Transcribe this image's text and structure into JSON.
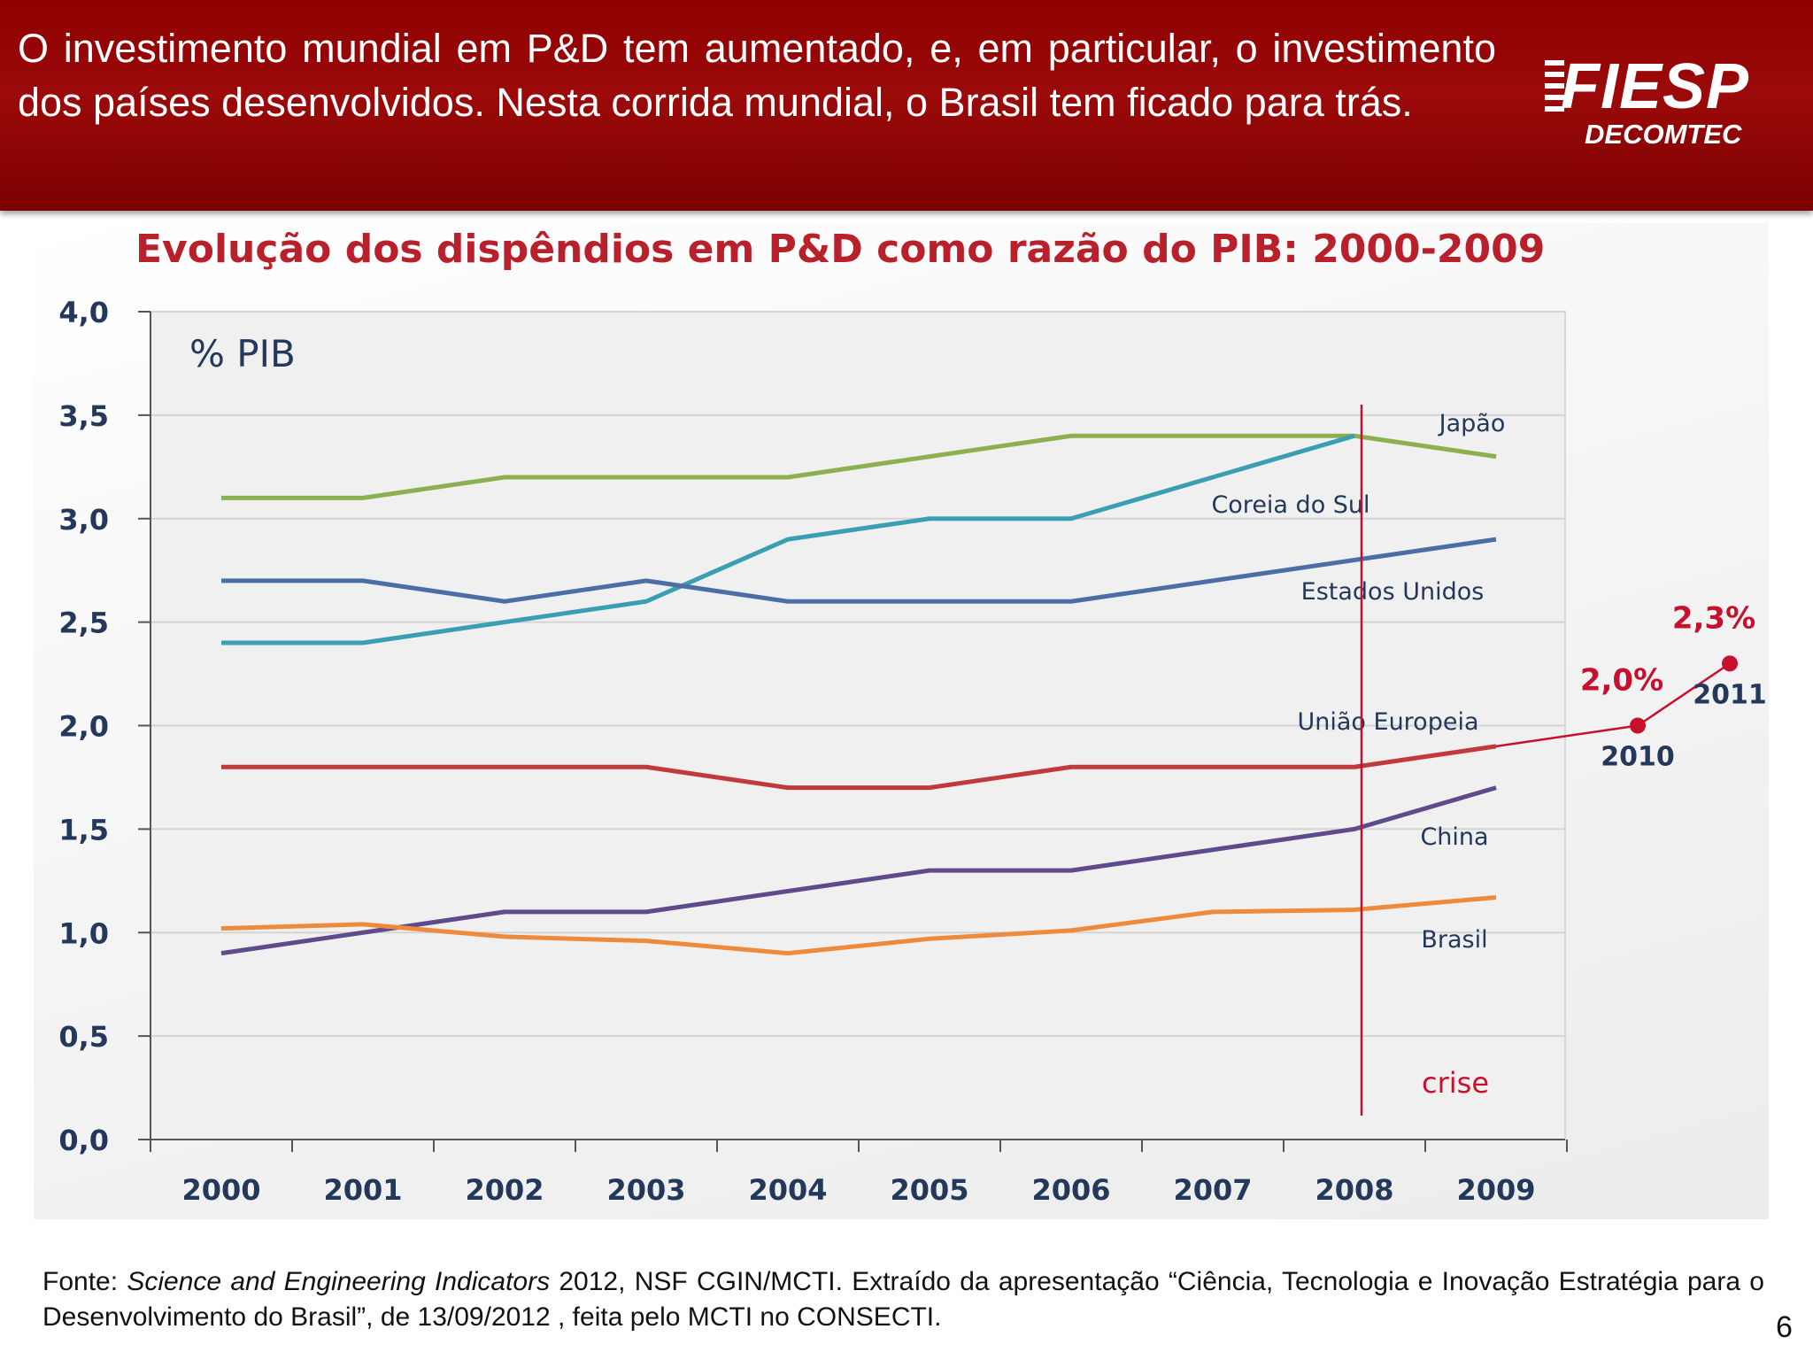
{
  "header": {
    "headline": "O investimento mundial em P&D tem aumentado, e, em particular, o investimento dos países desenvolvidos. Nesta corrida mundial, o Brasil tem ficado para trás.",
    "logo": "FIESP",
    "logo_sub": "DECOMTEC"
  },
  "chart_data": {
    "type": "line",
    "title": "Evolução dos dispêndios em P&D como razão do PIB: 2000-2009",
    "ylabel": "% PIB",
    "xlabel": "",
    "categories": [
      "2000",
      "2001",
      "2002",
      "2003",
      "2004",
      "2005",
      "2006",
      "2007",
      "2008",
      "2009"
    ],
    "yticks": [
      "0,0",
      "0,5",
      "1,0",
      "1,5",
      "2,0",
      "2,5",
      "3,0",
      "3,5",
      "4,0"
    ],
    "ylim": [
      0,
      4
    ],
    "grid": true,
    "series": [
      {
        "name": "Japão",
        "color": "#8cb050",
        "values": [
          3.1,
          3.1,
          3.2,
          3.2,
          3.2,
          3.3,
          3.4,
          3.4,
          3.4,
          3.3
        ]
      },
      {
        "name": "Coreia do Sul",
        "color": "#3a9fb2",
        "values": [
          2.4,
          2.4,
          2.5,
          2.6,
          2.9,
          3.0,
          3.0,
          3.2,
          3.4,
          null
        ]
      },
      {
        "name": "Estados Unidos",
        "color": "#4a6fa5",
        "values": [
          2.7,
          2.7,
          2.6,
          2.7,
          2.6,
          2.6,
          2.6,
          2.7,
          2.8,
          2.9
        ]
      },
      {
        "name": "União Europeia",
        "color": "#c0393b",
        "values": [
          1.8,
          1.8,
          1.8,
          1.8,
          1.7,
          1.7,
          1.8,
          1.8,
          1.8,
          1.9
        ]
      },
      {
        "name": "China",
        "color": "#5f4a8b",
        "values": [
          0.9,
          1.0,
          1.1,
          1.1,
          1.2,
          1.3,
          1.3,
          1.4,
          1.5,
          1.7
        ]
      },
      {
        "name": "Brasil",
        "color": "#ee8a3c",
        "values": [
          1.02,
          1.04,
          0.98,
          0.96,
          0.9,
          0.97,
          1.01,
          1.1,
          1.11,
          1.17
        ]
      }
    ],
    "projection": {
      "color": "#c8102e",
      "points": [
        {
          "year": "2010",
          "value": 2.0,
          "label": "2,0%"
        },
        {
          "year": "2011",
          "value": 2.3,
          "label": "2,3%"
        }
      ]
    },
    "annotation": {
      "label": "crise",
      "year": "2008",
      "color": "#c8102e"
    }
  },
  "footnote": {
    "prefix": "Fonte: ",
    "italic": "Science and Engineering Indicators",
    "rest": " 2012, NSF CGIN/MCTI. Extraído da apresentação “Ciência, Tecnologia e Inovação Estratégia para o Desenvolvimento do Brasil”, de 13/09/2012 , feita pelo MCTI no CONSECTI."
  },
  "page_number": "6"
}
